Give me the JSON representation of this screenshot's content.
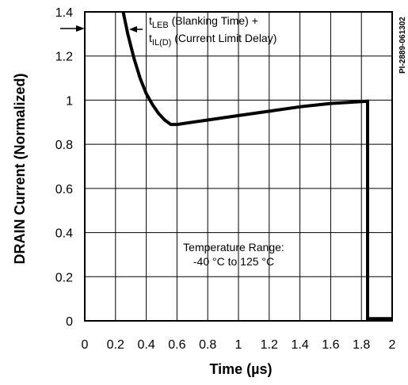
{
  "chart_data": {
    "type": "line",
    "xlabel": "Time (µs)",
    "ylabel": "DRAIN Current (Normalized)",
    "xlim": [
      0,
      2
    ],
    "ylim": [
      0,
      1.4
    ],
    "x_ticks": [
      "0",
      "0.2",
      "0.4",
      "0.6",
      "0.8",
      "1",
      "1.2",
      "1.4",
      "1.6",
      "1.8",
      "2"
    ],
    "y_ticks": [
      "0",
      "0.2",
      "0.4",
      "0.6",
      "0.8",
      "1",
      "1.2",
      "1.4"
    ],
    "grid": true,
    "series": [
      {
        "x": [
          0.25,
          0.28,
          0.32,
          0.36,
          0.4,
          0.44,
          0.48,
          0.52,
          0.56,
          0.6,
          0.8,
          1.0,
          1.2,
          1.4,
          1.6,
          1.84,
          1.84,
          2.0
        ],
        "y": [
          1.4,
          1.3,
          1.19,
          1.1,
          1.03,
          0.98,
          0.94,
          0.91,
          0.89,
          0.89,
          0.91,
          0.93,
          0.95,
          0.97,
          0.985,
          0.995,
          0.01,
          0.01
        ]
      }
    ],
    "annotations": {
      "arrow_label_line1_base": "t",
      "arrow_label_line1_sub": "LEB",
      "arrow_label_line1_rest": " (Blanking Time) +",
      "arrow_label_line2_base": "t",
      "arrow_label_line2_sub": "IL(D)",
      "arrow_label_line2_rest": " (Current Limit Delay)",
      "temp_line1": "Temperature Range:",
      "temp_line2": "-40 °C to 125 °C",
      "figure_code": "PI-2889-061302"
    }
  }
}
